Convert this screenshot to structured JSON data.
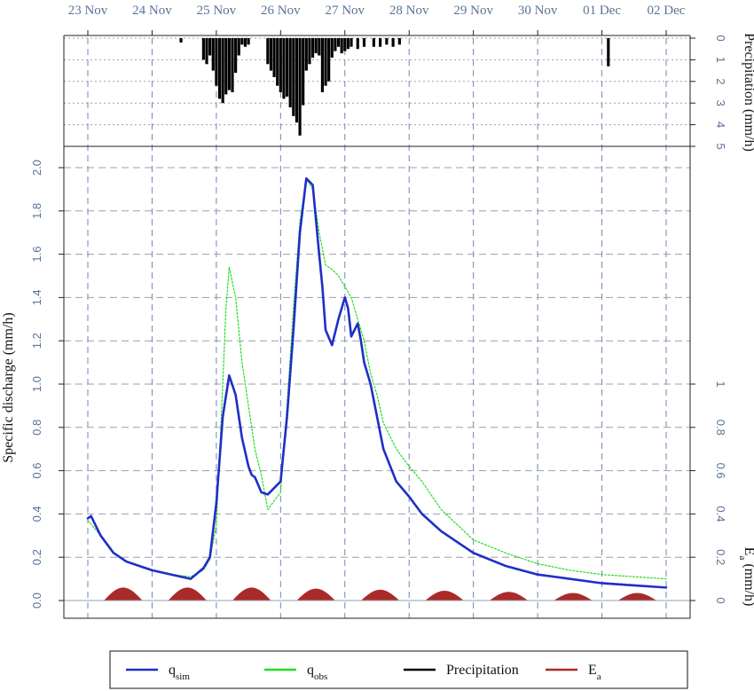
{
  "chart_data": {
    "type": "line",
    "x_ticks": [
      "23 Nov",
      "24 Nov",
      "25 Nov",
      "26 Nov",
      "27 Nov",
      "28 Nov",
      "29 Nov",
      "30 Nov",
      "01 Dec",
      "02 Dec"
    ],
    "xlim_days": [
      -0.05,
      9.05
    ],
    "discharge_axis": {
      "ylabel": "Specific discharge (mm/h)",
      "ylim": [
        0,
        2.0
      ],
      "ticks": [
        "0.0",
        "0.2",
        "0.4",
        "0.6",
        "0.8",
        "1.0",
        "1.2",
        "1.4",
        "1.6",
        "1.8",
        "2.0"
      ]
    },
    "ea_axis": {
      "ylabel": "E",
      "ylabel_sub": "a",
      "ylabel_suffix": " (mm/h)",
      "ticks": [
        "0",
        "0.2",
        "0.4",
        "0.6",
        "0.8",
        "1"
      ]
    },
    "precip_axis": {
      "ylabel": "Precipitation (mm/h)",
      "ticks": [
        "0",
        "1",
        "2",
        "3",
        "4",
        "5"
      ],
      "inverted": true,
      "ylim": [
        0,
        5
      ]
    },
    "grid": true,
    "series": [
      {
        "name": "q",
        "name_sub": "sim",
        "color": "#1f2ec8",
        "style": "solid",
        "x": [
          0.0,
          0.05,
          0.2,
          0.4,
          0.6,
          0.8,
          1.0,
          1.3,
          1.6,
          1.8,
          1.9,
          2.0,
          2.1,
          2.2,
          2.3,
          2.4,
          2.5,
          2.55,
          2.6,
          2.7,
          2.8,
          3.0,
          3.1,
          3.2,
          3.3,
          3.4,
          3.5,
          3.6,
          3.65,
          3.7,
          3.8,
          3.9,
          4.0,
          4.05,
          4.1,
          4.15,
          4.2,
          4.25,
          4.3,
          4.35,
          4.4,
          4.5,
          4.6,
          4.8,
          5.0,
          5.2,
          5.5,
          6.0,
          6.5,
          7.0,
          7.5,
          8.0,
          8.5,
          9.0
        ],
        "y": [
          0.38,
          0.39,
          0.3,
          0.22,
          0.18,
          0.16,
          0.14,
          0.12,
          0.1,
          0.15,
          0.2,
          0.45,
          0.85,
          1.04,
          0.95,
          0.75,
          0.62,
          0.58,
          0.57,
          0.5,
          0.49,
          0.55,
          0.85,
          1.25,
          1.7,
          1.95,
          1.92,
          1.6,
          1.45,
          1.25,
          1.18,
          1.3,
          1.4,
          1.35,
          1.22,
          1.25,
          1.28,
          1.2,
          1.1,
          1.05,
          1.0,
          0.85,
          0.7,
          0.55,
          0.48,
          0.4,
          0.32,
          0.22,
          0.16,
          0.12,
          0.1,
          0.08,
          0.07,
          0.06
        ]
      },
      {
        "name": "q",
        "name_sub": "obs",
        "color": "#22dd22",
        "style": "dotted",
        "x": [
          0.0,
          0.2,
          0.4,
          0.6,
          0.8,
          1.0,
          1.3,
          1.6,
          1.8,
          1.9,
          2.0,
          2.1,
          2.15,
          2.2,
          2.3,
          2.4,
          2.5,
          2.6,
          2.7,
          2.8,
          3.0,
          3.1,
          3.2,
          3.3,
          3.4,
          3.5,
          3.6,
          3.7,
          3.8,
          3.9,
          4.0,
          4.1,
          4.2,
          4.3,
          4.4,
          4.5,
          4.6,
          4.8,
          5.0,
          5.2,
          5.5,
          6.0,
          6.5,
          7.0,
          7.5,
          8.0,
          8.5,
          9.0
        ],
        "y": [
          0.37,
          0.3,
          0.22,
          0.18,
          0.16,
          0.14,
          0.12,
          0.11,
          0.14,
          0.19,
          0.35,
          1.0,
          1.35,
          1.54,
          1.4,
          1.1,
          0.9,
          0.7,
          0.58,
          0.42,
          0.5,
          0.9,
          1.35,
          1.75,
          1.95,
          1.9,
          1.7,
          1.55,
          1.53,
          1.5,
          1.45,
          1.4,
          1.3,
          1.2,
          1.05,
          0.95,
          0.82,
          0.7,
          0.62,
          0.55,
          0.42,
          0.28,
          0.22,
          0.17,
          0.14,
          0.12,
          0.11,
          0.1
        ]
      },
      {
        "name": "Precipitation",
        "color": "#000000",
        "style": "bars",
        "x": [
          1.45,
          1.8,
          1.85,
          1.9,
          1.95,
          2.0,
          2.05,
          2.1,
          2.15,
          2.2,
          2.25,
          2.3,
          2.35,
          2.4,
          2.45,
          2.5,
          2.8,
          2.85,
          2.9,
          2.95,
          3.0,
          3.05,
          3.1,
          3.15,
          3.2,
          3.25,
          3.3,
          3.35,
          3.4,
          3.45,
          3.5,
          3.55,
          3.6,
          3.65,
          3.7,
          3.75,
          3.8,
          3.85,
          3.9,
          3.95,
          4.0,
          4.05,
          4.1,
          4.2,
          4.3,
          4.45,
          4.55,
          4.65,
          4.75,
          4.85,
          8.1
        ],
        "y": [
          0.2,
          1.0,
          1.2,
          0.8,
          1.5,
          2.2,
          2.8,
          3.0,
          2.6,
          2.4,
          2.5,
          1.6,
          0.8,
          0.3,
          0.4,
          0.3,
          1.2,
          1.5,
          1.8,
          2.2,
          2.5,
          2.8,
          2.7,
          3.2,
          3.6,
          3.9,
          4.5,
          3.1,
          1.5,
          1.2,
          0.9,
          0.7,
          0.8,
          2.5,
          2.2,
          2.0,
          0.9,
          0.6,
          0.4,
          0.7,
          0.6,
          0.5,
          0.4,
          0.5,
          0.4,
          0.4,
          0.4,
          0.3,
          0.4,
          0.3,
          1.3
        ]
      },
      {
        "name": "E",
        "name_sub": "a",
        "color": "#aa2a2a",
        "style": "filled-humps",
        "peak_days": [
          0.55,
          1.55,
          2.55,
          3.55,
          4.55,
          5.55,
          6.55,
          7.55,
          8.55
        ],
        "peak_values": [
          0.06,
          0.06,
          0.06,
          0.055,
          0.05,
          0.045,
          0.04,
          0.035,
          0.035
        ]
      }
    ],
    "legend": {
      "placement": "bottom",
      "items": [
        {
          "label": "q",
          "sub": "sim",
          "color": "#1f2ec8",
          "style": "solid"
        },
        {
          "label": "q",
          "sub": "obs",
          "color": "#22dd22",
          "style": "solid"
        },
        {
          "label": "Precipitation",
          "sub": "",
          "color": "#000000",
          "style": "solid"
        },
        {
          "label": "E",
          "sub": "a",
          "color": "#aa2a2a",
          "style": "solid"
        }
      ]
    }
  }
}
